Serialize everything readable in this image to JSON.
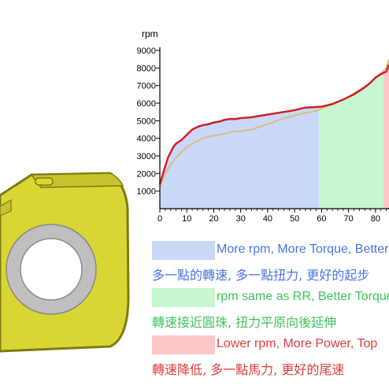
{
  "colors": {
    "zone_low": "#c9d7f8",
    "zone_mid": "#c6f7cf",
    "zone_high": "#fbc7c8",
    "line_red": "#d01f2a",
    "line_tan": "#d6c082",
    "roller_body": "#d8d634",
    "roller_edge": "#7d7c12",
    "roller_ring": "#bfbfbf",
    "text_blue": "#4a75e6",
    "text_green": "#3dc45c",
    "text_red": "#e23b3b"
  },
  "chart_data": {
    "type": "line",
    "ylabel": "rpm",
    "xlim": [
      0,
      85
    ],
    "ylim": [
      0,
      9000
    ],
    "x_ticks": [
      "0",
      "10",
      "20",
      "30",
      "40",
      "50",
      "60",
      "70",
      "80"
    ],
    "y_ticks": [
      "1000",
      "2000",
      "3000",
      "4000",
      "5000",
      "6000",
      "7000",
      "8000",
      "9000"
    ],
    "zones": [
      {
        "from": 0,
        "to": 59,
        "color_key": "zone_low"
      },
      {
        "from": 59,
        "to": 83,
        "color_key": "zone_mid"
      },
      {
        "from": 83,
        "to": 85,
        "color_key": "zone_high"
      }
    ],
    "series": [
      {
        "color_key": "line_red",
        "x": [
          0,
          1,
          2,
          3,
          4,
          5,
          6,
          8,
          10,
          12,
          14,
          16,
          18,
          20,
          22,
          24,
          26,
          28,
          30,
          34,
          38,
          42,
          46,
          50,
          54,
          58,
          60,
          64,
          68,
          72,
          76,
          78,
          80,
          82,
          84,
          85
        ],
        "y": [
          1400,
          1900,
          2400,
          2900,
          3200,
          3500,
          3700,
          3900,
          4200,
          4500,
          4650,
          4750,
          4800,
          4900,
          4950,
          5050,
          5100,
          5100,
          5150,
          5200,
          5300,
          5400,
          5500,
          5600,
          5750,
          5780,
          5800,
          5950,
          6200,
          6500,
          6900,
          7150,
          7450,
          7650,
          7800,
          8200
        ]
      },
      {
        "color_key": "line_tan",
        "x": [
          0,
          2,
          4,
          6,
          8,
          10,
          12,
          14,
          16,
          18,
          20,
          22,
          24,
          26,
          28,
          30,
          34,
          38,
          42,
          46,
          50,
          54,
          58,
          60,
          64,
          68,
          72,
          76,
          78,
          80,
          82,
          84,
          85
        ],
        "y": [
          1200,
          2000,
          2500,
          2900,
          3200,
          3500,
          3700,
          3850,
          4000,
          4100,
          4150,
          4200,
          4250,
          4350,
          4400,
          4400,
          4500,
          4700,
          4900,
          5150,
          5300,
          5450,
          5550,
          5700,
          5950,
          6200,
          6550,
          6950,
          7150,
          7450,
          7700,
          8000,
          8500
        ]
      }
    ]
  },
  "legend": [
    {
      "color_key": "zone_low",
      "text_key": "text_blue",
      "en": "More rpm, More Torque, Better",
      "zh": "多一點的轉速, 多一點扭力, 更好的起步"
    },
    {
      "color_key": "zone_mid",
      "text_key": "text_green",
      "en": "rpm same as RR, Better Torque",
      "zh": "轉速接近圓珠, 扭力平原向後延伸"
    },
    {
      "color_key": "zone_high",
      "text_key": "text_red",
      "en": "Lower rpm, More Power, Top",
      "zh": "轉速降低, 多一點馬力, 更好的尾速"
    }
  ]
}
